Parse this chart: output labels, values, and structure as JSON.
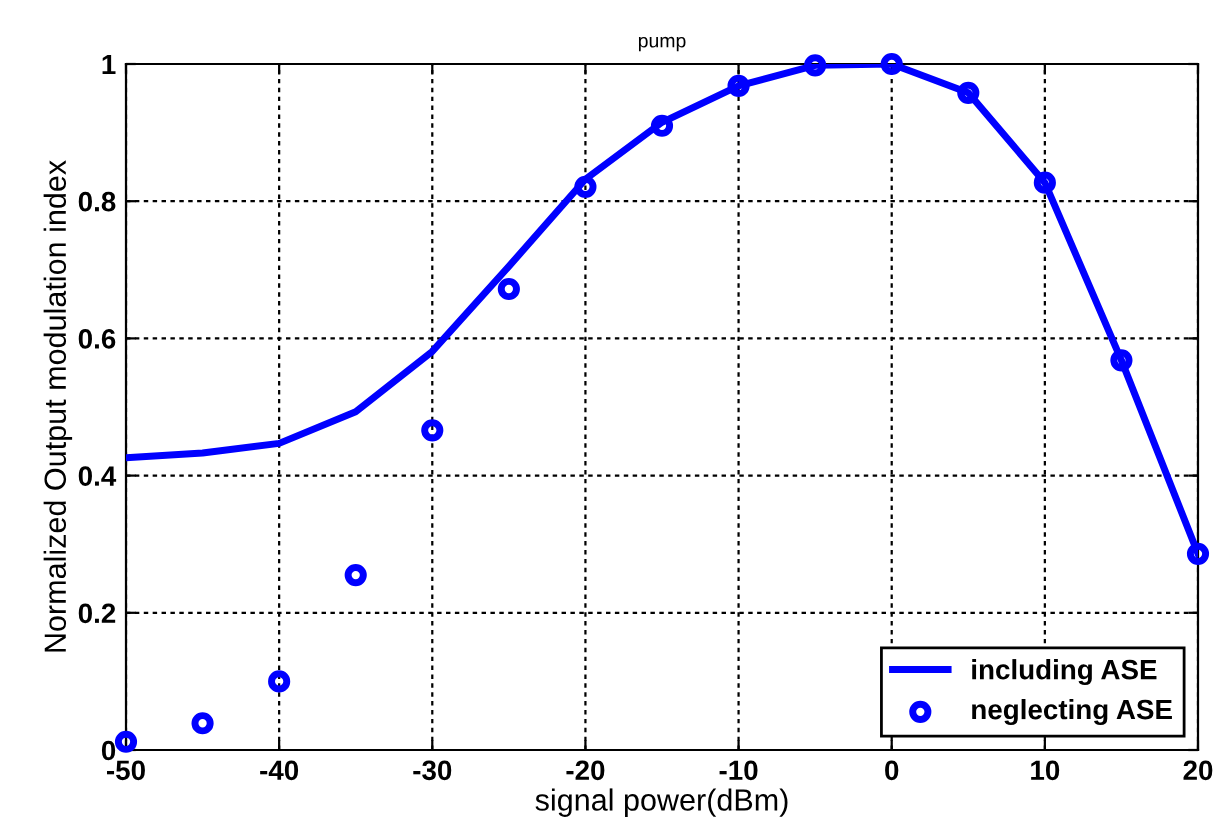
{
  "chart_data": {
    "type": "line",
    "title": "pump",
    "xlabel": "signal power(dBm)",
    "ylabel": "Normalized Output modulation index",
    "x": [
      -50,
      -45,
      -40,
      -35,
      -30,
      -25,
      -20,
      -15,
      -10,
      -5,
      0,
      5,
      10,
      15,
      20
    ],
    "series": [
      {
        "name": "including ASE",
        "color": "#0000ff",
        "marker": "none",
        "line_style": "solid",
        "values": [
          0.426,
          0.433,
          0.447,
          0.493,
          0.581,
          0.705,
          0.832,
          0.915,
          0.968,
          0.998,
          1.0,
          0.958,
          0.827,
          0.568,
          0.286
        ]
      },
      {
        "name": "neglecting ASE",
        "type": "scatter",
        "color": "#0000ff",
        "marker": "circle",
        "values": [
          0.012,
          0.039,
          0.1,
          0.255,
          0.466,
          0.672,
          0.821,
          0.91,
          0.968,
          0.998,
          1.0,
          0.958,
          0.827,
          0.568,
          0.286
        ]
      }
    ],
    "xlim": [
      -50,
      20
    ],
    "xticks": [
      -50,
      -40,
      -30,
      -20,
      -10,
      0,
      10,
      20
    ],
    "ylim": [
      0,
      1
    ],
    "yticks": [
      0,
      0.2,
      0.4,
      0.6,
      0.8,
      1
    ],
    "grid": true,
    "legend": "bottom right"
  }
}
